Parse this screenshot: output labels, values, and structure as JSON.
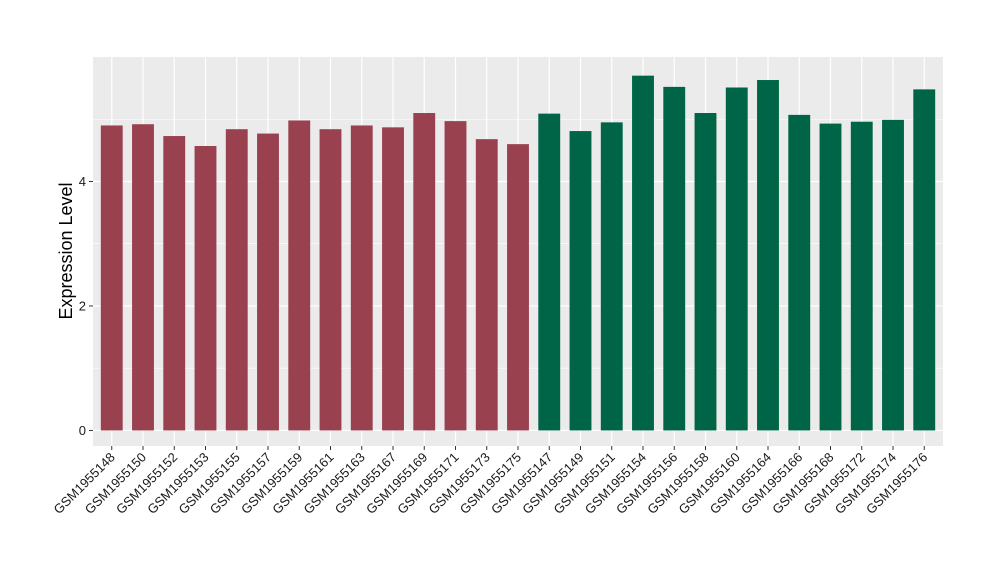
{
  "chart_data": {
    "type": "bar",
    "ylabel": "Expression Level",
    "xlabel": "",
    "title": "",
    "ylim": [
      -0.25,
      6.0
    ],
    "yticks": [
      0,
      2,
      4
    ],
    "grid": true,
    "legend": "none",
    "colors": {
      "group1": "#9a4150",
      "group2": "#006546",
      "panel": "#ebebeb",
      "gridline": "#ffffff"
    },
    "categories": [
      "GSM1955148",
      "GSM1955150",
      "GSM1955152",
      "GSM1955153",
      "GSM1955155",
      "GSM1955157",
      "GSM1955159",
      "GSM1955161",
      "GSM1955163",
      "GSM1955167",
      "GSM1955169",
      "GSM1955171",
      "GSM1955173",
      "GSM1955175",
      "GSM1955147",
      "GSM1955149",
      "GSM1955151",
      "GSM1955154",
      "GSM1955156",
      "GSM1955158",
      "GSM1955160",
      "GSM1955164",
      "GSM1955166",
      "GSM1955168",
      "GSM1955172",
      "GSM1955174",
      "GSM1955176"
    ],
    "values": [
      4.9,
      4.92,
      4.73,
      4.57,
      4.84,
      4.77,
      4.98,
      4.84,
      4.9,
      4.87,
      5.1,
      4.97,
      4.68,
      4.6,
      5.09,
      4.81,
      4.95,
      5.7,
      5.52,
      5.1,
      5.51,
      5.63,
      5.07,
      4.93,
      4.96,
      4.99,
      5.48
    ],
    "groups": [
      1,
      1,
      1,
      1,
      1,
      1,
      1,
      1,
      1,
      1,
      1,
      1,
      1,
      1,
      2,
      2,
      2,
      2,
      2,
      2,
      2,
      2,
      2,
      2,
      2,
      2,
      2
    ]
  }
}
